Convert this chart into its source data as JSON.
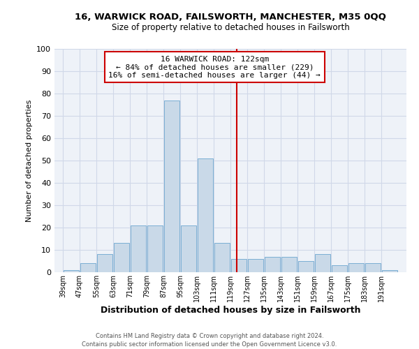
{
  "title": "16, WARWICK ROAD, FAILSWORTH, MANCHESTER, M35 0QQ",
  "subtitle": "Size of property relative to detached houses in Failsworth",
  "xlabel": "Distribution of detached houses by size in Failsworth",
  "ylabel": "Number of detached properties",
  "bar_color": "#c9d9e8",
  "bar_edge_color": "#7bafd4",
  "grid_color": "#d0d8e8",
  "background_color": "#eef2f8",
  "vline_x": 122,
  "vline_color": "#cc0000",
  "annotation_title": "16 WARWICK ROAD: 122sqm",
  "annotation_line2": "← 84% of detached houses are smaller (229)",
  "annotation_line3": "16% of semi-detached houses are larger (44) →",
  "bin_edges": [
    39,
    47,
    55,
    63,
    71,
    79,
    87,
    95,
    103,
    111,
    119,
    127,
    135,
    143,
    151,
    159,
    167,
    175,
    183,
    191,
    199
  ],
  "bar_heights": [
    1,
    4,
    8,
    13,
    21,
    21,
    77,
    21,
    51,
    13,
    6,
    6,
    7,
    7,
    5,
    8,
    3,
    4,
    4,
    1
  ],
  "xlim": [
    35,
    203
  ],
  "ylim": [
    0,
    100
  ],
  "yticks": [
    0,
    10,
    20,
    30,
    40,
    50,
    60,
    70,
    80,
    90,
    100
  ],
  "footer_line1": "Contains HM Land Registry data © Crown copyright and database right 2024.",
  "footer_line2": "Contains public sector information licensed under the Open Government Licence v3.0."
}
